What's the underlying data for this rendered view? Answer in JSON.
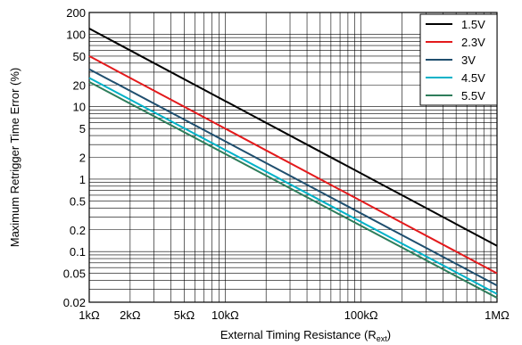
{
  "chart_data": {
    "type": "line",
    "xlabel": "External Timing Resistance (R",
    "xlabel_sub": "ext",
    "xlabel_end": ")",
    "ylabel": "Maximum Retrigger Time Error (%)",
    "x_scale": "log",
    "y_scale": "log",
    "xlim": [
      1000,
      1000000
    ],
    "ylim": [
      0.02,
      200
    ],
    "grid": true,
    "legend_position": "top-right",
    "x_ticks": [
      {
        "value": 1000,
        "label": "1kΩ"
      },
      {
        "value": 2000,
        "label": "2kΩ"
      },
      {
        "value": 5000,
        "label": "5kΩ"
      },
      {
        "value": 10000,
        "label": "10kΩ"
      },
      {
        "value": 100000,
        "label": "100kΩ"
      },
      {
        "value": 1000000,
        "label": "1MΩ"
      }
    ],
    "y_ticks": [
      {
        "value": 0.02,
        "label": "0.02"
      },
      {
        "value": 0.05,
        "label": "0.05"
      },
      {
        "value": 0.1,
        "label": "0.1"
      },
      {
        "value": 0.2,
        "label": "0.2"
      },
      {
        "value": 0.5,
        "label": "0.5"
      },
      {
        "value": 1,
        "label": "1"
      },
      {
        "value": 2,
        "label": "2"
      },
      {
        "value": 5,
        "label": "5"
      },
      {
        "value": 10,
        "label": "10"
      },
      {
        "value": 20,
        "label": "20"
      },
      {
        "value": 50,
        "label": "50"
      },
      {
        "value": 100,
        "label": "100"
      },
      {
        "value": 200,
        "label": "200"
      }
    ],
    "series": [
      {
        "name": "1.5V",
        "color": "#000000",
        "x": [
          1000,
          1000000
        ],
        "y": [
          120,
          0.12
        ]
      },
      {
        "name": "2.3V",
        "color": "#e31a1c",
        "x": [
          1000,
          1000000
        ],
        "y": [
          50,
          0.05
        ]
      },
      {
        "name": "3V",
        "color": "#1f4e6e",
        "x": [
          1000,
          1000000
        ],
        "y": [
          33,
          0.034
        ]
      },
      {
        "name": "4.5V",
        "color": "#00b2c8",
        "x": [
          1000,
          1000000
        ],
        "y": [
          25,
          0.026
        ]
      },
      {
        "name": "5.5V",
        "color": "#2e7d5b",
        "x": [
          1000,
          1000000
        ],
        "y": [
          22,
          0.023
        ]
      }
    ]
  }
}
